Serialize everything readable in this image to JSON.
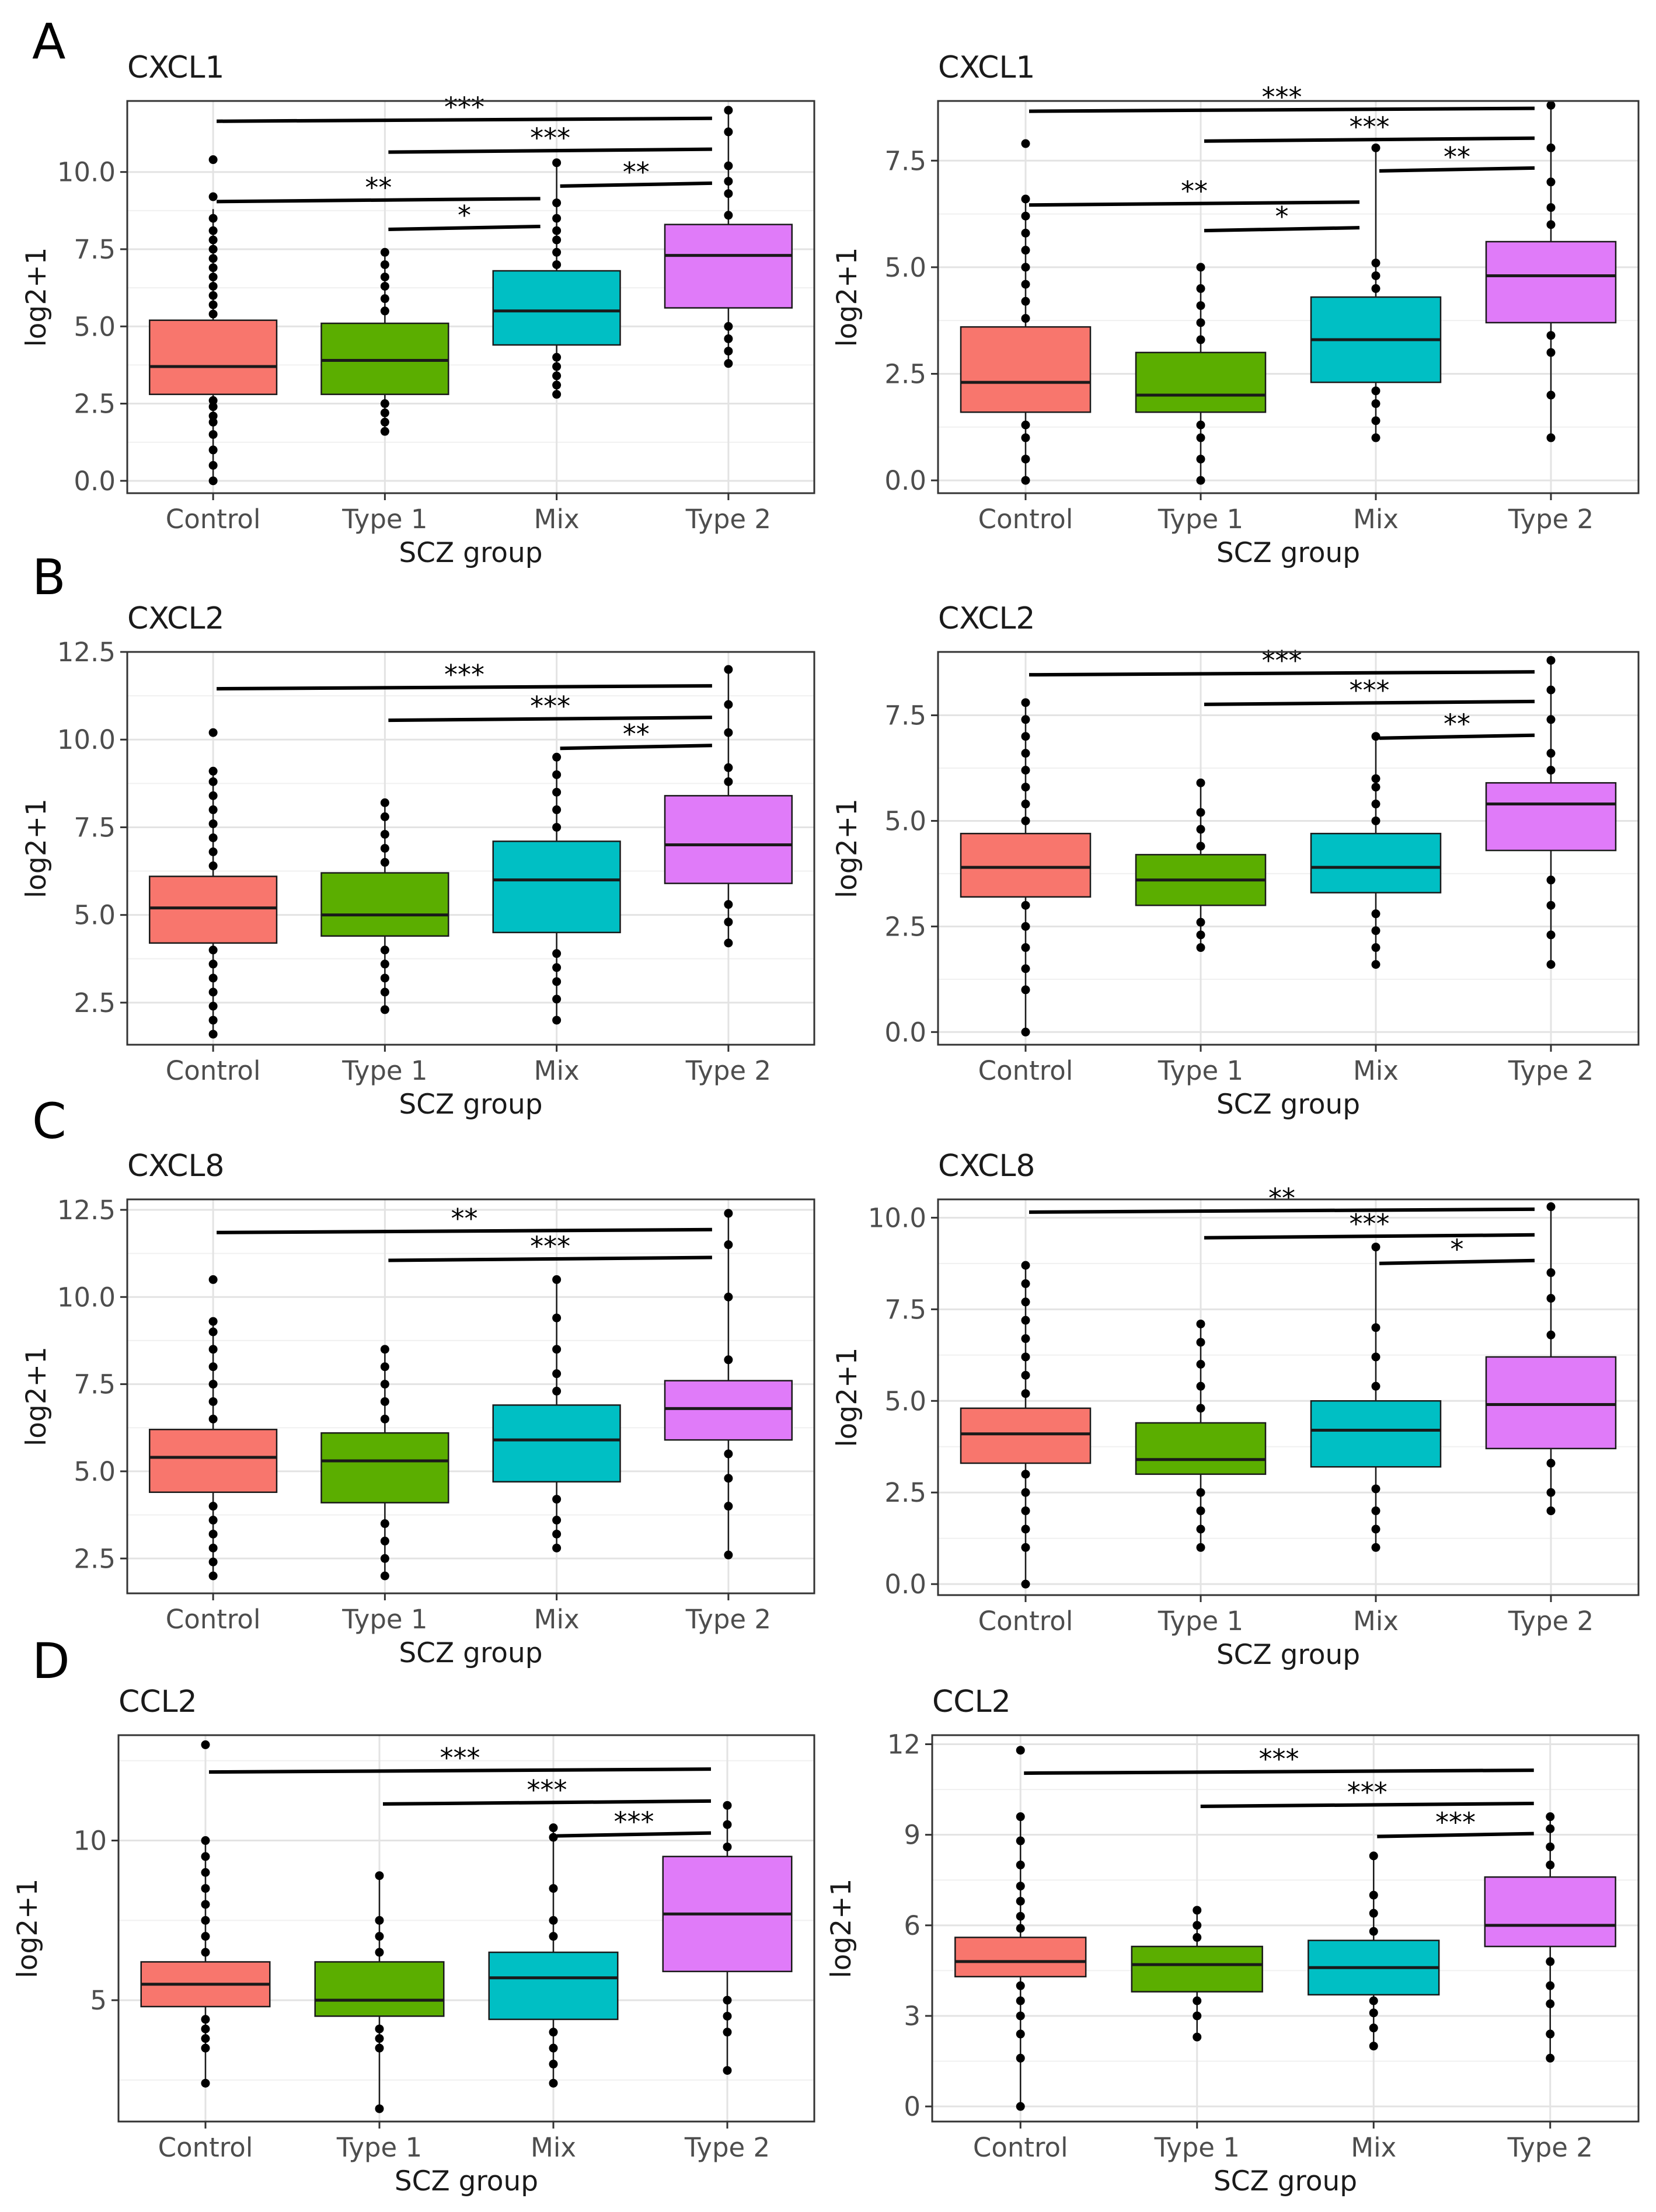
{
  "figure": {
    "panel_letters": [
      "A",
      "B",
      "C",
      "D"
    ]
  },
  "chart_data": [
    {
      "type": "box",
      "panel": "A",
      "title": "CXCL1",
      "xlabel": "SCZ group",
      "ylabel": "log2+1",
      "ylim": [
        -0.4,
        12.3
      ],
      "yticks": [
        0,
        2.5,
        5,
        7.5,
        10
      ],
      "ytick_labels": [
        "0.0",
        "2.5",
        "5.0",
        "7.5",
        "10.0"
      ],
      "categories": [
        "Control",
        "Type 1",
        "Mix",
        "Type 2"
      ],
      "colors": [
        "#F8766D",
        "#5BAE00",
        "#00BFC4",
        "#E07BF9"
      ],
      "boxes": [
        {
          "q1": 2.8,
          "median": 3.7,
          "q3": 5.2,
          "whisker_low": 0,
          "whisker_high": 8.8,
          "outliers": [
            0.0,
            0.5,
            1.0,
            1.5,
            1.9,
            2.1,
            2.4,
            2.6,
            5.4,
            5.7,
            6.0,
            6.3,
            6.6,
            6.9,
            7.2,
            7.5,
            7.8,
            8.1,
            8.5,
            9.2,
            10.4
          ]
        },
        {
          "q1": 2.8,
          "median": 3.9,
          "q3": 5.1,
          "whisker_low": 1.6,
          "whisker_high": 7.4,
          "outliers": [
            1.6,
            1.9,
            2.2,
            2.5,
            5.5,
            5.9,
            6.3,
            6.6,
            7.0,
            7.4
          ]
        },
        {
          "q1": 4.4,
          "median": 5.5,
          "q3": 6.8,
          "whisker_low": 2.8,
          "whisker_high": 10.3,
          "outliers": [
            2.8,
            3.1,
            3.4,
            3.7,
            4.0,
            7.0,
            7.4,
            7.8,
            8.1,
            8.5,
            9.0,
            10.3
          ]
        },
        {
          "q1": 5.6,
          "median": 7.3,
          "q3": 8.3,
          "whisker_low": 3.8,
          "whisker_high": 12.0,
          "outliers": [
            3.8,
            4.2,
            4.6,
            5.0,
            8.6,
            9.3,
            9.7,
            10.2,
            11.3,
            12.0
          ]
        }
      ],
      "comparisons": [
        {
          "from": "Control",
          "to": "Type 2",
          "y": 11.7,
          "label": "***"
        },
        {
          "from": "Type 1",
          "to": "Type 2",
          "y": 10.7,
          "label": "***"
        },
        {
          "from": "Mix",
          "to": "Type 2",
          "y": 9.6,
          "label": "**"
        },
        {
          "from": "Control",
          "to": "Mix",
          "y": 9.1,
          "label": "**"
        },
        {
          "from": "Type 1",
          "to": "Mix",
          "y": 8.2,
          "label": "*"
        }
      ]
    },
    {
      "type": "box",
      "panel": "A",
      "title": "CXCL1",
      "xlabel": "SCZ group",
      "ylabel": "log2+1",
      "ylim": [
        -0.3,
        8.9
      ],
      "yticks": [
        0,
        2.5,
        5,
        7.5
      ],
      "ytick_labels": [
        "0.0",
        "2.5",
        "5.0",
        "7.5"
      ],
      "categories": [
        "Control",
        "Type 1",
        "Mix",
        "Type 2"
      ],
      "colors": [
        "#F8766D",
        "#5BAE00",
        "#00BFC4",
        "#E07BF9"
      ],
      "boxes": [
        {
          "q1": 1.6,
          "median": 2.3,
          "q3": 3.6,
          "whisker_low": 0,
          "whisker_high": 6.6,
          "outliers": [
            0.0,
            0.5,
            1.0,
            1.3,
            3.8,
            4.2,
            4.6,
            5.0,
            5.4,
            5.8,
            6.2,
            6.6,
            7.9
          ]
        },
        {
          "q1": 1.6,
          "median": 2.0,
          "q3": 3.0,
          "whisker_low": 0,
          "whisker_high": 5.0,
          "outliers": [
            0.0,
            0.5,
            1.0,
            1.3,
            3.3,
            3.7,
            4.1,
            4.5,
            5.0
          ]
        },
        {
          "q1": 2.3,
          "median": 3.3,
          "q3": 4.3,
          "whisker_low": 1.0,
          "whisker_high": 7.8,
          "outliers": [
            1.0,
            1.4,
            1.8,
            2.1,
            4.5,
            4.8,
            5.1,
            7.8
          ]
        },
        {
          "q1": 3.7,
          "median": 4.8,
          "q3": 5.6,
          "whisker_low": 1.0,
          "whisker_high": 8.8,
          "outliers": [
            1.0,
            2.0,
            3.0,
            3.4,
            6.0,
            6.4,
            7.0,
            7.8,
            8.8
          ]
        }
      ],
      "comparisons": [
        {
          "from": "Control",
          "to": "Type 2",
          "y": 8.7,
          "label": "***"
        },
        {
          "from": "Type 1",
          "to": "Type 2",
          "y": 8.0,
          "label": "***"
        },
        {
          "from": "Mix",
          "to": "Type 2",
          "y": 7.3,
          "label": "**"
        },
        {
          "from": "Control",
          "to": "Mix",
          "y": 6.5,
          "label": "**"
        },
        {
          "from": "Type 1",
          "to": "Mix",
          "y": 5.9,
          "label": "*"
        }
      ]
    },
    {
      "type": "box",
      "panel": "B",
      "title": "CXCL2",
      "xlabel": "SCZ group",
      "ylabel": "log2+1",
      "ylim": [
        1.3,
        12.5
      ],
      "yticks": [
        2.5,
        5,
        7.5,
        10,
        12.5
      ],
      "ytick_labels": [
        "2.5",
        "5.0",
        "7.5",
        "10.0",
        "12.5"
      ],
      "categories": [
        "Control",
        "Type 1",
        "Mix",
        "Type 2"
      ],
      "colors": [
        "#F8766D",
        "#5BAE00",
        "#00BFC4",
        "#E07BF9"
      ],
      "boxes": [
        {
          "q1": 4.2,
          "median": 5.2,
          "q3": 6.1,
          "whisker_low": 1.6,
          "whisker_high": 9.1,
          "outliers": [
            1.6,
            2.0,
            2.4,
            2.8,
            3.2,
            3.6,
            4.0,
            6.4,
            6.8,
            7.2,
            7.6,
            8.0,
            8.4,
            8.8,
            9.1,
            10.2
          ]
        },
        {
          "q1": 4.4,
          "median": 5.0,
          "q3": 6.2,
          "whisker_low": 2.3,
          "whisker_high": 8.2,
          "outliers": [
            2.3,
            2.8,
            3.2,
            3.6,
            4.0,
            6.5,
            6.9,
            7.3,
            7.8,
            8.2
          ]
        },
        {
          "q1": 4.5,
          "median": 6.0,
          "q3": 7.1,
          "whisker_low": 2.0,
          "whisker_high": 9.5,
          "outliers": [
            2.0,
            2.6,
            3.1,
            3.5,
            3.9,
            7.5,
            8.0,
            8.5,
            9.0,
            9.5
          ]
        },
        {
          "q1": 5.9,
          "median": 7.0,
          "q3": 8.4,
          "whisker_low": 4.2,
          "whisker_high": 12.0,
          "outliers": [
            4.2,
            4.8,
            5.3,
            8.8,
            9.2,
            10.2,
            11.0,
            12.0
          ]
        }
      ],
      "comparisons": [
        {
          "from": "Control",
          "to": "Type 2",
          "y": 11.5,
          "label": "***"
        },
        {
          "from": "Type 1",
          "to": "Type 2",
          "y": 10.6,
          "label": "***"
        },
        {
          "from": "Mix",
          "to": "Type 2",
          "y": 9.8,
          "label": "**"
        }
      ]
    },
    {
      "type": "box",
      "panel": "B",
      "title": "CXCL2",
      "xlabel": "SCZ group",
      "ylabel": "log2+1",
      "ylim": [
        -0.3,
        9.0
      ],
      "yticks": [
        0,
        2.5,
        5,
        7.5
      ],
      "ytick_labels": [
        "0.0",
        "2.5",
        "5.0",
        "7.5"
      ],
      "categories": [
        "Control",
        "Type 1",
        "Mix",
        "Type 2"
      ],
      "colors": [
        "#F8766D",
        "#5BAE00",
        "#00BFC4",
        "#E07BF9"
      ],
      "boxes": [
        {
          "q1": 3.2,
          "median": 3.9,
          "q3": 4.7,
          "whisker_low": 0,
          "whisker_high": 7.8,
          "outliers": [
            0.0,
            1.0,
            1.5,
            2.0,
            2.5,
            3.0,
            5.0,
            5.4,
            5.8,
            6.2,
            6.6,
            7.0,
            7.4,
            7.8
          ]
        },
        {
          "q1": 3.0,
          "median": 3.6,
          "q3": 4.2,
          "whisker_low": 2.0,
          "whisker_high": 5.9,
          "outliers": [
            2.0,
            2.3,
            2.6,
            4.4,
            4.8,
            5.2,
            5.9
          ]
        },
        {
          "q1": 3.3,
          "median": 3.9,
          "q3": 4.7,
          "whisker_low": 1.6,
          "whisker_high": 7.0,
          "outliers": [
            1.6,
            2.0,
            2.4,
            2.8,
            5.0,
            5.4,
            5.8,
            6.0,
            7.0
          ]
        },
        {
          "q1": 4.3,
          "median": 5.4,
          "q3": 5.9,
          "whisker_low": 1.6,
          "whisker_high": 8.8,
          "outliers": [
            1.6,
            2.3,
            3.0,
            3.6,
            6.2,
            6.6,
            7.4,
            8.1,
            8.8
          ]
        }
      ],
      "comparisons": [
        {
          "from": "Control",
          "to": "Type 2",
          "y": 8.5,
          "label": "***"
        },
        {
          "from": "Type 1",
          "to": "Type 2",
          "y": 7.8,
          "label": "***"
        },
        {
          "from": "Mix",
          "to": "Type 2",
          "y": 7.0,
          "label": "**"
        }
      ]
    },
    {
      "type": "box",
      "panel": "C",
      "title": "CXCL8",
      "xlabel": "SCZ group",
      "ylabel": "log2+1",
      "ylim": [
        1.5,
        12.8
      ],
      "yticks": [
        2.5,
        5,
        7.5,
        10,
        12.5
      ],
      "ytick_labels": [
        "2.5",
        "5.0",
        "7.5",
        "10.0",
        "12.5"
      ],
      "categories": [
        "Control",
        "Type 1",
        "Mix",
        "Type 2"
      ],
      "colors": [
        "#F8766D",
        "#5BAE00",
        "#00BFC4",
        "#E07BF9"
      ],
      "boxes": [
        {
          "q1": 4.4,
          "median": 5.4,
          "q3": 6.2,
          "whisker_low": 2.0,
          "whisker_high": 9.3,
          "outliers": [
            2.0,
            2.4,
            2.8,
            3.2,
            3.6,
            4.0,
            6.5,
            7.0,
            7.5,
            8.0,
            8.5,
            9.0,
            9.3,
            10.5
          ]
        },
        {
          "q1": 4.1,
          "median": 5.3,
          "q3": 6.1,
          "whisker_low": 2.0,
          "whisker_high": 8.5,
          "outliers": [
            2.0,
            2.5,
            3.0,
            3.5,
            6.5,
            7.0,
            7.5,
            8.0,
            8.5
          ]
        },
        {
          "q1": 4.7,
          "median": 5.9,
          "q3": 6.9,
          "whisker_low": 2.8,
          "whisker_high": 10.5,
          "outliers": [
            2.8,
            3.2,
            3.6,
            4.2,
            7.3,
            7.8,
            8.5,
            9.4,
            10.5
          ]
        },
        {
          "q1": 5.9,
          "median": 6.8,
          "q3": 7.6,
          "whisker_low": 2.6,
          "whisker_high": 12.4,
          "outliers": [
            2.6,
            4.0,
            4.8,
            5.5,
            8.2,
            10.0,
            11.5,
            12.4
          ]
        }
      ],
      "comparisons": [
        {
          "from": "Control",
          "to": "Type 2",
          "y": 11.9,
          "label": "**"
        },
        {
          "from": "Type 1",
          "to": "Type 2",
          "y": 11.1,
          "label": "***"
        }
      ]
    },
    {
      "type": "box",
      "panel": "C",
      "title": "CXCL8",
      "xlabel": "SCZ group",
      "ylabel": "log2+1",
      "ylim": [
        -0.3,
        10.5
      ],
      "yticks": [
        0,
        2.5,
        5,
        7.5,
        10
      ],
      "ytick_labels": [
        "0.0",
        "2.5",
        "5.0",
        "7.5",
        "10.0"
      ],
      "categories": [
        "Control",
        "Type 1",
        "Mix",
        "Type 2"
      ],
      "colors": [
        "#F8766D",
        "#5BAE00",
        "#00BFC4",
        "#E07BF9"
      ],
      "boxes": [
        {
          "q1": 3.3,
          "median": 4.1,
          "q3": 4.8,
          "whisker_low": 0,
          "whisker_high": 8.7,
          "outliers": [
            0.0,
            1.0,
            1.5,
            2.0,
            2.5,
            3.0,
            5.2,
            5.7,
            6.2,
            6.7,
            7.2,
            7.7,
            8.2,
            8.7
          ]
        },
        {
          "q1": 3.0,
          "median": 3.4,
          "q3": 4.4,
          "whisker_low": 1.0,
          "whisker_high": 7.1,
          "outliers": [
            1.0,
            1.5,
            2.0,
            2.5,
            4.8,
            5.4,
            6.0,
            6.6,
            7.1
          ]
        },
        {
          "q1": 3.2,
          "median": 4.2,
          "q3": 5.0,
          "whisker_low": 1.0,
          "whisker_high": 9.2,
          "outliers": [
            1.0,
            1.5,
            2.0,
            2.6,
            5.4,
            6.2,
            7.0,
            9.2
          ]
        },
        {
          "q1": 3.7,
          "median": 4.9,
          "q3": 6.2,
          "whisker_low": 2.0,
          "whisker_high": 10.3,
          "outliers": [
            2.0,
            2.5,
            3.3,
            6.8,
            7.8,
            8.5,
            10.3
          ]
        }
      ],
      "comparisons": [
        {
          "from": "Control",
          "to": "Type 2",
          "y": 10.2,
          "label": "**"
        },
        {
          "from": "Type 1",
          "to": "Type 2",
          "y": 9.5,
          "label": "***"
        },
        {
          "from": "Mix",
          "to": "Type 2",
          "y": 8.8,
          "label": "*"
        }
      ]
    },
    {
      "type": "box",
      "panel": "D",
      "title": "CCL2",
      "xlabel": "SCZ group",
      "ylabel": "log2+1",
      "ylim": [
        1.2,
        13.3
      ],
      "yticks": [
        5,
        10
      ],
      "ytick_labels": [
        "5",
        "10"
      ],
      "minor_gridlines": [
        2.5,
        7.5,
        12.5
      ],
      "categories": [
        "Control",
        "Type 1",
        "Mix",
        "Type 2"
      ],
      "colors": [
        "#F8766D",
        "#5BAE00",
        "#00BFC4",
        "#E07BF9"
      ],
      "boxes": [
        {
          "q1": 4.8,
          "median": 5.5,
          "q3": 6.2,
          "whisker_low": 2.4,
          "whisker_high": 10.0,
          "outliers": [
            2.4,
            3.5,
            3.8,
            4.1,
            4.4,
            6.5,
            7.0,
            7.5,
            8.0,
            8.5,
            9.0,
            9.5,
            10.0,
            13.0
          ]
        },
        {
          "q1": 4.5,
          "median": 5.0,
          "q3": 6.2,
          "whisker_low": 1.6,
          "whisker_high": 8.9,
          "outliers": [
            1.6,
            3.5,
            3.8,
            4.1,
            6.5,
            7.0,
            7.5,
            8.9
          ]
        },
        {
          "q1": 4.4,
          "median": 5.7,
          "q3": 6.5,
          "whisker_low": 2.4,
          "whisker_high": 10.4,
          "outliers": [
            2.4,
            3.0,
            3.5,
            4.0,
            7.0,
            7.5,
            8.5,
            10.1,
            10.4
          ]
        },
        {
          "q1": 5.9,
          "median": 7.7,
          "q3": 9.5,
          "whisker_low": 2.8,
          "whisker_high": 11.1,
          "outliers": [
            2.8,
            4.0,
            4.5,
            5.0,
            9.8,
            10.5,
            11.1
          ]
        }
      ],
      "comparisons": [
        {
          "from": "Control",
          "to": "Type 2",
          "y": 12.2,
          "label": "***"
        },
        {
          "from": "Type 1",
          "to": "Type 2",
          "y": 11.2,
          "label": "***"
        },
        {
          "from": "Mix",
          "to": "Type 2",
          "y": 10.2,
          "label": "***"
        }
      ]
    },
    {
      "type": "box",
      "panel": "D",
      "title": "CCL2",
      "xlabel": "SCZ group",
      "ylabel": "log2+1",
      "ylim": [
        -0.5,
        12.3
      ],
      "yticks": [
        0,
        3,
        6,
        9,
        12
      ],
      "ytick_labels": [
        "0",
        "3",
        "6",
        "9",
        "12"
      ],
      "categories": [
        "Control",
        "Type 1",
        "Mix",
        "Type 2"
      ],
      "colors": [
        "#F8766D",
        "#5BAE00",
        "#00BFC4",
        "#E07BF9"
      ],
      "boxes": [
        {
          "q1": 4.3,
          "median": 4.8,
          "q3": 5.6,
          "whisker_low": 0,
          "whisker_high": 9.6,
          "outliers": [
            0.0,
            1.6,
            2.4,
            3.0,
            3.5,
            4.0,
            5.9,
            6.3,
            6.8,
            7.3,
            8.0,
            8.8,
            9.6,
            11.8
          ]
        },
        {
          "q1": 3.8,
          "median": 4.7,
          "q3": 5.3,
          "whisker_low": 2.3,
          "whisker_high": 6.5,
          "outliers": [
            2.3,
            3.0,
            3.5,
            5.6,
            6.0,
            6.5
          ]
        },
        {
          "q1": 3.7,
          "median": 4.6,
          "q3": 5.5,
          "whisker_low": 2.0,
          "whisker_high": 8.3,
          "outliers": [
            2.0,
            2.6,
            3.1,
            3.5,
            5.8,
            6.4,
            7.0,
            8.3
          ]
        },
        {
          "q1": 5.3,
          "median": 6.0,
          "q3": 7.6,
          "whisker_low": 1.6,
          "whisker_high": 9.6,
          "outliers": [
            1.6,
            2.4,
            3.4,
            4.0,
            4.8,
            8.0,
            8.6,
            9.2,
            9.6
          ]
        }
      ],
      "comparisons": [
        {
          "from": "Control",
          "to": "Type 2",
          "y": 11.1,
          "label": "***"
        },
        {
          "from": "Type 1",
          "to": "Type 2",
          "y": 10.0,
          "label": "***"
        },
        {
          "from": "Mix",
          "to": "Type 2",
          "y": 9.0,
          "label": "***"
        }
      ]
    }
  ]
}
